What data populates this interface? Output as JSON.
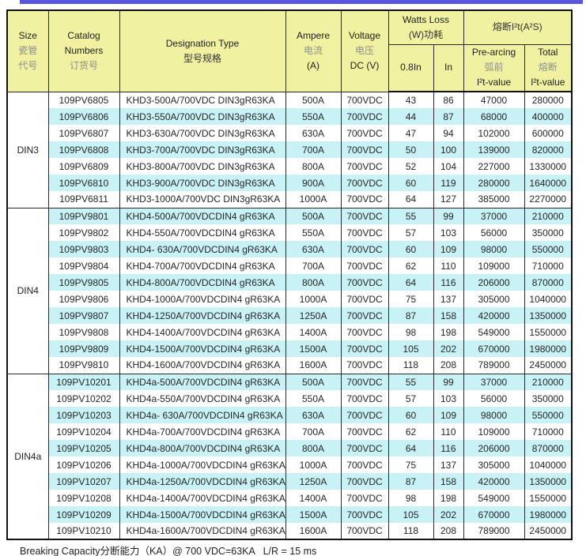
{
  "colors": {
    "accent_bar": "#5a55dd",
    "header_bg": "#f0f1a1",
    "row_alt_bg": "#c8f2f6",
    "border": "#2a2a2a"
  },
  "header": {
    "size": {
      "en": "Size",
      "cn1": "瓷管",
      "cn2": "代号"
    },
    "catalog": {
      "en1": "Catalog",
      "en2": "Numbers",
      "cn": "订货号"
    },
    "designation": {
      "en": "Designation Type",
      "cn": "型号规格"
    },
    "ampere": {
      "en": "Ampere",
      "cn": "电流",
      "unit": "(A)"
    },
    "voltage": {
      "en": "Voltage",
      "cn": "电压",
      "unit": "DC (V)"
    },
    "watts_loss": {
      "en": "Watts Loss",
      "cn": "(W)功耗",
      "col_08": "0.8In",
      "col_in": "In"
    },
    "i2t": {
      "title": "熔断I²t(A²S)"
    },
    "prearcing": {
      "en": "Pre-arcing",
      "cn": "弧前",
      "sub": "I²t-value"
    },
    "total": {
      "en": "Total",
      "cn": "熔断",
      "sub": "I²t-value"
    }
  },
  "groups": [
    {
      "size_label": "DIN3",
      "rows": [
        {
          "catalog": "109PV6805",
          "designation": "KHD3-500A/700VDC DIN3gR63KA",
          "ampere": "500A",
          "voltage": "700VDC",
          "watts_08in": "43",
          "watts_in": "86",
          "prearcing_i2t": "47000",
          "total_i2t": "280000"
        },
        {
          "catalog": "109PV6806",
          "designation": "KHD3-550A/700VDC DIN3gR63KA",
          "ampere": "550A",
          "voltage": "700VDC",
          "watts_08in": "44",
          "watts_in": "87",
          "prearcing_i2t": "68000",
          "total_i2t": "400000"
        },
        {
          "catalog": "109PV6807",
          "designation": "KHD3-630A/700VDC DIN3gR63KA",
          "ampere": "630A",
          "voltage": "700VDC",
          "watts_08in": "47",
          "watts_in": "94",
          "prearcing_i2t": "102000",
          "total_i2t": "600000"
        },
        {
          "catalog": "109PV6808",
          "designation": "KHD3-700A/700VDC DIN3gR63KA",
          "ampere": "700A",
          "voltage": "700VDC",
          "watts_08in": "50",
          "watts_in": "100",
          "prearcing_i2t": "139000",
          "total_i2t": "820000"
        },
        {
          "catalog": "109PV6809",
          "designation": "KHD3-800A/700VDC DIN3gR63KA",
          "ampere": "800A",
          "voltage": "700VDC",
          "watts_08in": "52",
          "watts_in": "104",
          "prearcing_i2t": "227000",
          "total_i2t": "1330000"
        },
        {
          "catalog": "109PV6810",
          "designation": "KHD3-900A/700VDC DIN3gR63KA",
          "ampere": "900A",
          "voltage": "700VDC",
          "watts_08in": "60",
          "watts_in": "119",
          "prearcing_i2t": "280000",
          "total_i2t": "1640000"
        },
        {
          "catalog": "109PV6811",
          "designation": "KHD3-1000A/700VDC DIN3gR63KA",
          "ampere": "1000A",
          "voltage": "700VDC",
          "watts_08in": "64",
          "watts_in": "127",
          "prearcing_i2t": "385000",
          "total_i2t": "2270000"
        }
      ]
    },
    {
      "size_label": "DIN4",
      "rows": [
        {
          "catalog": "109PV9801",
          "designation": "KHD4-500A/700VDCDIN4 gR63KA",
          "ampere": "500A",
          "voltage": "700VDC",
          "watts_08in": "55",
          "watts_in": "99",
          "prearcing_i2t": "37000",
          "total_i2t": "210000"
        },
        {
          "catalog": "109PV9802",
          "designation": "KHD4-550A/700VDCDIN4 gR63KA",
          "ampere": "550A",
          "voltage": "700VDC",
          "watts_08in": "57",
          "watts_in": "103",
          "prearcing_i2t": "56000",
          "total_i2t": "350000"
        },
        {
          "catalog": "109PV9803",
          "designation": "KHD4- 630A/700VDCDIN4 gR63KA",
          "ampere": "630A",
          "voltage": "700VDC",
          "watts_08in": "60",
          "watts_in": "109",
          "prearcing_i2t": "98000",
          "total_i2t": "550000"
        },
        {
          "catalog": "109PV9804",
          "designation": "KHD4-700A/700VDCDIN4 gR63KA",
          "ampere": "700A",
          "voltage": "700VDC",
          "watts_08in": "62",
          "watts_in": "110",
          "prearcing_i2t": "109000",
          "total_i2t": "710000"
        },
        {
          "catalog": "109PV9805",
          "designation": "KHD4-800A/700VDCDIN4 gR63KA",
          "ampere": "800A",
          "voltage": "700VDC",
          "watts_08in": "64",
          "watts_in": "116",
          "prearcing_i2t": "206000",
          "total_i2t": "870000"
        },
        {
          "catalog": "109PV9806",
          "designation": "KHD4-1000A/700VDCDIN4 gR63KA",
          "ampere": "1000A",
          "voltage": "700VDC",
          "watts_08in": "75",
          "watts_in": "137",
          "prearcing_i2t": "305000",
          "total_i2t": "1040000"
        },
        {
          "catalog": "109PV9807",
          "designation": "KHD4-1250A/700VDCDIN4 gR63KA",
          "ampere": "1250A",
          "voltage": "700VDC",
          "watts_08in": "87",
          "watts_in": "158",
          "prearcing_i2t": "420000",
          "total_i2t": "1350000"
        },
        {
          "catalog": "109PV9808",
          "designation": "KHD4-1400A/700VDCDIN4 gR63KA",
          "ampere": "1400A",
          "voltage": "700VDC",
          "watts_08in": "98",
          "watts_in": "198",
          "prearcing_i2t": "549000",
          "total_i2t": "1550000"
        },
        {
          "catalog": "109PV9809",
          "designation": "KHD4-1500A/700VDCDIN4 gR63KA",
          "ampere": "1500A",
          "voltage": "700VDC",
          "watts_08in": "105",
          "watts_in": "202",
          "prearcing_i2t": "670000",
          "total_i2t": "1980000"
        },
        {
          "catalog": "109PV9810",
          "designation": "KHD4-1600A/700VDCDIN4 gR63KA",
          "ampere": "1600A",
          "voltage": "700VDC",
          "watts_08in": "118",
          "watts_in": "208",
          "prearcing_i2t": "789000",
          "total_i2t": "2450000"
        }
      ]
    },
    {
      "size_label": "DIN4a",
      "rows": [
        {
          "catalog": "109PV10201",
          "designation": "KHD4a-500A/700VDCDIN4 gR63KA",
          "ampere": "500A",
          "voltage": "700VDC",
          "watts_08in": "55",
          "watts_in": "99",
          "prearcing_i2t": "37000",
          "total_i2t": "210000"
        },
        {
          "catalog": "109PV10202",
          "designation": "KHD4a-550A/700VDCDIN4 gR63KA",
          "ampere": "550A",
          "voltage": "700VDC",
          "watts_08in": "57",
          "watts_in": "103",
          "prearcing_i2t": "56000",
          "total_i2t": "350000"
        },
        {
          "catalog": "109PV10203",
          "designation": "KHD4a- 630A/700VDCDIN4 gR63KA",
          "ampere": "630A",
          "voltage": "700VDC",
          "watts_08in": "60",
          "watts_in": "109",
          "prearcing_i2t": "98000",
          "total_i2t": "550000"
        },
        {
          "catalog": "109PV10204",
          "designation": "KHD4a-700A/700VDCDIN4 gR63KA",
          "ampere": "700A",
          "voltage": "700VDC",
          "watts_08in": "62",
          "watts_in": "110",
          "prearcing_i2t": "109000",
          "total_i2t": "710000"
        },
        {
          "catalog": "109PV10205",
          "designation": "KHD4a-800A/700VDCDIN4 gR63KA",
          "ampere": "800A",
          "voltage": "700VDC",
          "watts_08in": "64",
          "watts_in": "116",
          "prearcing_i2t": "206000",
          "total_i2t": "870000"
        },
        {
          "catalog": "109PV10206",
          "designation": "KHD4a-1000A/700VDCDIN4 gR63KA",
          "ampere": "1000A",
          "voltage": "700VDC",
          "watts_08in": "75",
          "watts_in": "137",
          "prearcing_i2t": "305000",
          "total_i2t": "1040000"
        },
        {
          "catalog": "109PV10207",
          "designation": "KHD4a-1250A/700VDCDIN4 gR63KA",
          "ampere": "1250A",
          "voltage": "700VDC",
          "watts_08in": "87",
          "watts_in": "158",
          "prearcing_i2t": "420000",
          "total_i2t": "1350000"
        },
        {
          "catalog": "109PV10208",
          "designation": "KHD4a-1400A/700VDCDIN4 gR63KA",
          "ampere": "1400A",
          "voltage": "700VDC",
          "watts_08in": "98",
          "watts_in": "198",
          "prearcing_i2t": "549000",
          "total_i2t": "1550000"
        },
        {
          "catalog": "109PV10209",
          "designation": "KHD4a-1500A/700VDCDIN4 gR63KA",
          "ampere": "1500A",
          "voltage": "700VDC",
          "watts_08in": "105",
          "watts_in": "202",
          "prearcing_i2t": "670000",
          "total_i2t": "1980000"
        },
        {
          "catalog": "109PV10210",
          "designation": "KHD4a-1600A/700VDCDIN4 gR63KA",
          "ampere": "1600A",
          "voltage": "700VDC",
          "watts_08in": "118",
          "watts_in": "208",
          "prearcing_i2t": "789000",
          "total_i2t": "2450000"
        }
      ]
    }
  ],
  "footer": {
    "note": "Breaking Capacity分断能力（KA）@ 700 VDC=63KA   L/R = 15 ms"
  }
}
